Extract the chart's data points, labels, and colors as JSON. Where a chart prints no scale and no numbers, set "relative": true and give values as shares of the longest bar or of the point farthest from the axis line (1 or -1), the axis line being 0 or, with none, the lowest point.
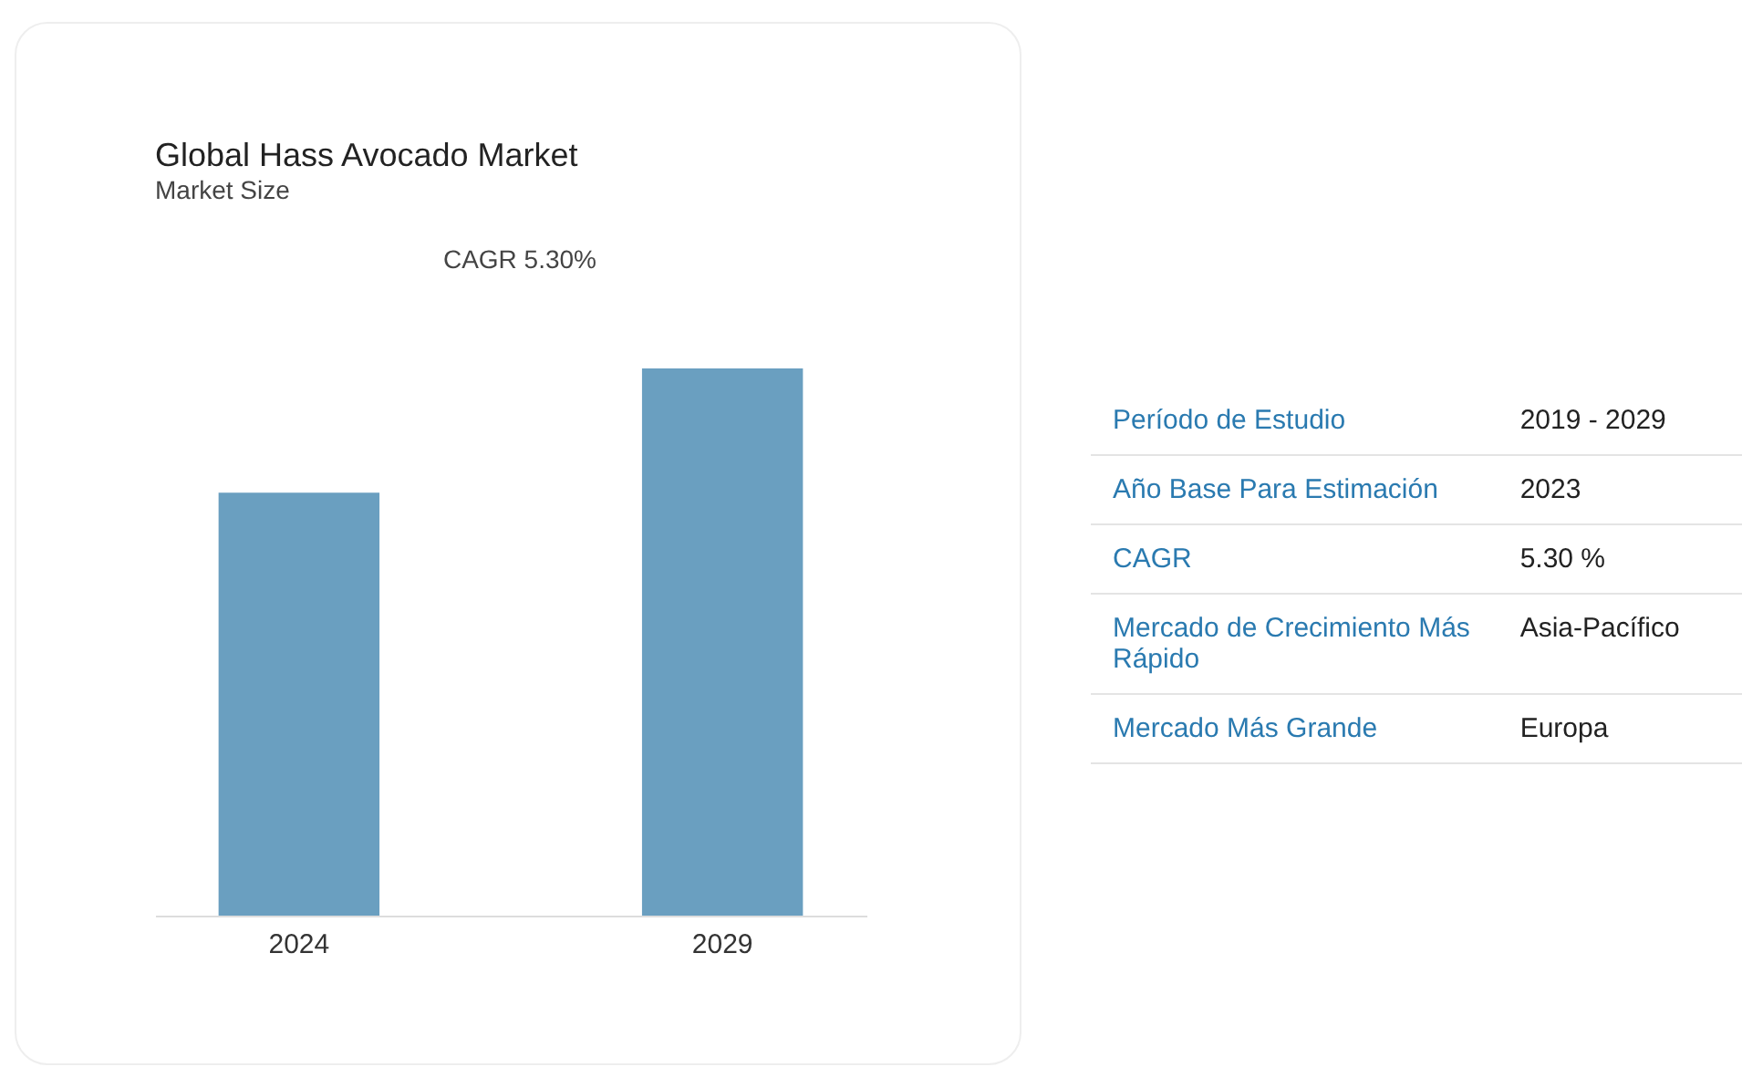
{
  "chart_data": [
    {
      "type": "bar",
      "title": "Global Hass Avocado Market",
      "subtitle": "Market Size",
      "annotations": [
        "CAGR 5.30%"
      ],
      "categories": [
        "2024",
        "2029"
      ],
      "values": [
        0.773,
        1
      ],
      "color": "#6a9fc0",
      "relative": true
    },
    {
      "type": "other",
      "annotations": [
        "Período de Estudio",
        "2019 - 2029",
        "Año Base Para Estimación",
        "2023",
        "CAGR",
        "5.30 %",
        "Mercado de Crecimiento Más Rápido",
        "Asia-Pacífico",
        "Mercado Más Grande",
        "Europa"
      ]
    }
  ]
}
